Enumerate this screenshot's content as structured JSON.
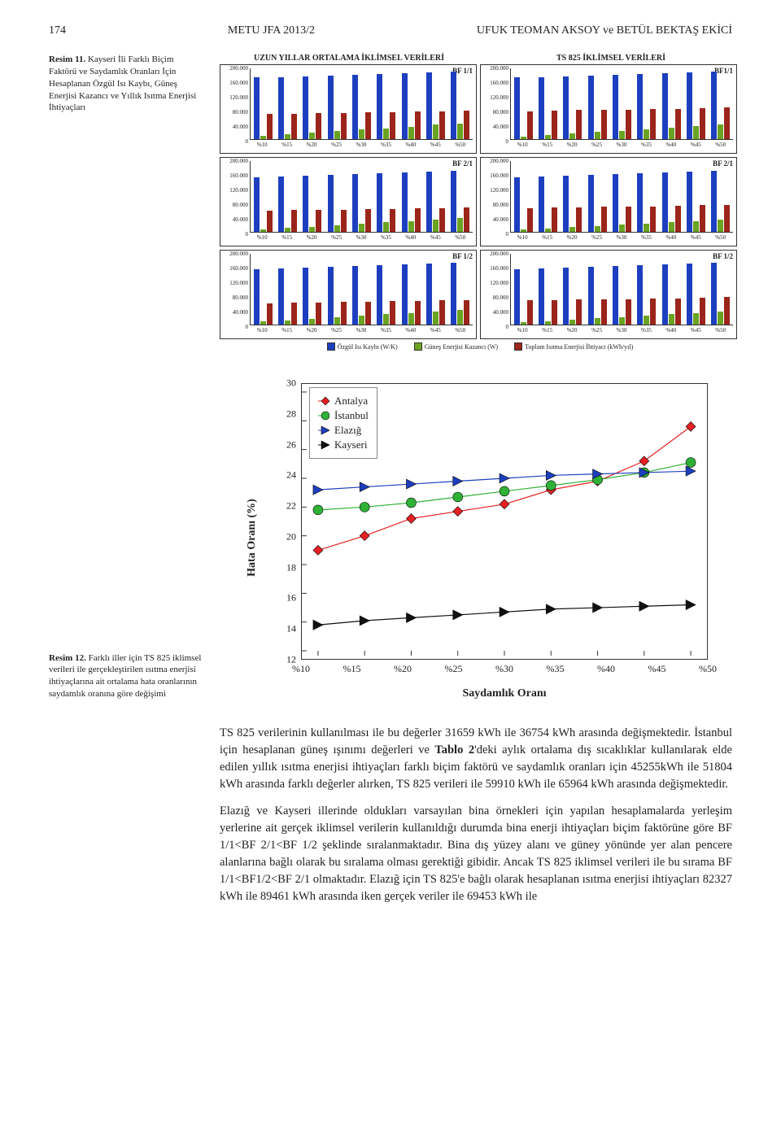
{
  "header": {
    "page_num": "174",
    "journal": "METU JFA 2013/2",
    "authors": "UFUK TEOMAN AKSOY ve BETÜL BEKTAŞ EKİCİ"
  },
  "caption11": {
    "label": "Resim 11.",
    "text": "Kayseri İli Farklı Biçim Faktörü ve Saydamlık Oranları İçin Hesaplanan Özgül Isı Kaybı, Güneş Enerjisi Kazancı ve Yıllık Isıtma Enerjisi İhtiyaçları"
  },
  "caption12": {
    "label": "Resim 12.",
    "text": "Farklı iller için TS 825 iklimsel verileri ile gerçekleştirilen ısıtma enerjisi ihtiyaçlarına ait ortalama hata oranlarının saydamlık oranına göre değişimi"
  },
  "bar_charts": {
    "left_title": "UZUN YILLAR ORTALAMA İKLİMSEL VERİLERİ",
    "right_title": "TS 825 İKLİMSEL VERİLERİ",
    "panel_tags": [
      "BF 1/1",
      "BF1/1",
      "BF 2/1",
      "BF 2/1",
      "BF 1/2",
      "BF 1/2"
    ],
    "y_ticks": [
      "200.000",
      "160.000",
      "120.000",
      "80.000",
      "40.000",
      "0"
    ],
    "x_cats": [
      "%10",
      "%15",
      "%20",
      "%25",
      "%30",
      "%35",
      "%40",
      "%45",
      "%50"
    ],
    "y_max": 200,
    "colors": {
      "isi": "#1d3fbf",
      "gunes": "#6aa321",
      "toplam": "#9b241b"
    },
    "legend": {
      "isi": "Özgül Isı Kaybı (W/K)",
      "gunes": "Güneş Enerjisi Kazancı (W)",
      "toplam": "Toplam Isıtma Enerjisi İhtiyacı (kWh/yıl)"
    },
    "panels": [
      {
        "isi": [
          168,
          170,
          172,
          174,
          176,
          178,
          180,
          182,
          184
        ],
        "gunes": [
          9,
          13,
          17,
          22,
          26,
          30,
          34,
          39,
          43
        ],
        "toplam": [
          68,
          70,
          71,
          72,
          73,
          74,
          75,
          76,
          77
        ]
      },
      {
        "isi": [
          168,
          170,
          172,
          174,
          176,
          178,
          180,
          182,
          184
        ],
        "gunes": [
          7,
          11,
          15,
          19,
          23,
          27,
          31,
          35,
          39
        ],
        "toplam": [
          76,
          78,
          79,
          80,
          81,
          82,
          83,
          84,
          86
        ]
      },
      {
        "isi": [
          150,
          152,
          154,
          156,
          158,
          160,
          162,
          164,
          166
        ],
        "gunes": [
          7,
          11,
          14,
          18,
          22,
          26,
          29,
          33,
          37
        ],
        "toplam": [
          58,
          59,
          60,
          61,
          62,
          63,
          64,
          65,
          66
        ]
      },
      {
        "isi": [
          150,
          152,
          154,
          156,
          158,
          160,
          162,
          164,
          166
        ],
        "gunes": [
          6,
          9,
          13,
          16,
          20,
          23,
          27,
          30,
          34
        ],
        "toplam": [
          65,
          66,
          67,
          68,
          69,
          70,
          72,
          73,
          74
        ]
      },
      {
        "isi": [
          152,
          154,
          156,
          158,
          160,
          162,
          164,
          166,
          168
        ],
        "gunes": [
          8,
          12,
          16,
          20,
          24,
          28,
          32,
          36,
          40
        ],
        "toplam": [
          58,
          60,
          61,
          62,
          63,
          64,
          65,
          66,
          67
        ]
      },
      {
        "isi": [
          152,
          154,
          156,
          158,
          160,
          162,
          164,
          166,
          168
        ],
        "gunes": [
          7,
          10,
          14,
          17,
          21,
          24,
          28,
          31,
          35
        ],
        "toplam": [
          66,
          67,
          68,
          69,
          70,
          71,
          72,
          73,
          75
        ]
      }
    ]
  },
  "scatter": {
    "x_label": "Saydamlık Oranı",
    "y_label": "Hata Oranı (%)",
    "x_ticks": [
      "%10",
      "%15",
      "%20",
      "%25",
      "%30",
      "%35",
      "%40",
      "%45",
      "%50"
    ],
    "y_ticks": [
      12,
      14,
      16,
      18,
      20,
      22,
      24,
      26,
      28,
      30
    ],
    "ylim": [
      12,
      30
    ],
    "series": [
      {
        "name": "Antalya",
        "color": "#e52123",
        "marker": "diamond",
        "y": [
          19.0,
          20.0,
          21.2,
          21.7,
          22.2,
          23.2,
          23.8,
          25.2,
          27.6
        ]
      },
      {
        "name": "İstanbul",
        "color": "#2fb136",
        "marker": "circle",
        "y": [
          21.8,
          22.0,
          22.3,
          22.7,
          23.1,
          23.5,
          23.9,
          24.4,
          25.1
        ]
      },
      {
        "name": "Elazığ",
        "color": "#1d3fbf",
        "marker": "triangle-right",
        "y": [
          23.2,
          23.4,
          23.6,
          23.8,
          24.0,
          24.2,
          24.3,
          24.4,
          24.5
        ]
      },
      {
        "name": "Kayseri",
        "color": "#111111",
        "marker": "triangle-right",
        "y": [
          13.8,
          14.1,
          14.3,
          14.5,
          14.7,
          14.9,
          15.0,
          15.1,
          15.2
        ]
      }
    ]
  },
  "body": {
    "p1": "TS 825 verilerinin kullanılması ile bu değerler 31659 kWh ile 36754 kWh arasında değişmektedir. İstanbul için hesaplanan güneş ışınımı değerleri ve Tablo 2'deki aylık ortalama dış sıcaklıklar kullanılarak elde edilen yıllık ısıtma enerjisi ihtiyaçları farklı biçim faktörü ve saydamlık oranları için 45255kWh ile 51804 kWh arasında farklı değerler alırken, TS 825 verileri ile 59910 kWh ile 65964 kWh arasında değişmektedir.",
    "p2": "Elazığ ve Kayseri illerinde oldukları varsayılan bina örnekleri için yapılan hesaplamalarda yerleşim yerlerine ait gerçek iklimsel verilerin kullanıldığı durumda bina enerji ihtiyaçları biçim faktörüne göre BF 1/1<BF 2/1<BF 1/2 şeklinde sıralanmaktadır. Bina dış yüzey alanı ve güney yönünde yer alan pencere alanlarına bağlı olarak bu sıralama olması gerektiği gibidir. Ancak TS 825 iklimsel verileri ile bu sırama BF 1/1<BF1/2<BF 2/1 olmaktadır. Elazığ için TS 825'e bağlı olarak hesaplanan ısıtma enerjisi ihtiyaçları 82327 kWh ile 89461 kWh arasında iken gerçek veriler ile 69453 kWh ile"
  }
}
